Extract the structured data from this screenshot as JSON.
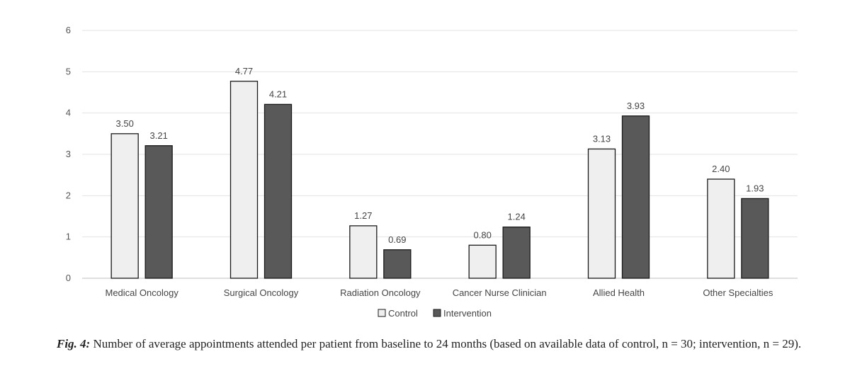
{
  "chart_data": {
    "type": "bar",
    "categories": [
      "Medical Oncology",
      "Surgical Oncology",
      "Radiation Oncology",
      "Cancer Nurse Clinician",
      "Allied Health",
      "Other Specialties"
    ],
    "series": [
      {
        "name": "Control",
        "values": [
          3.5,
          4.77,
          1.27,
          0.8,
          3.13,
          2.4
        ],
        "labels": [
          "3.50",
          "4.77",
          "1.27",
          "0.80",
          "3.13",
          "2.40"
        ],
        "color": "#efefef"
      },
      {
        "name": "Intervention",
        "values": [
          3.21,
          4.21,
          0.69,
          1.24,
          3.93,
          1.93
        ],
        "labels": [
          "3.21",
          "4.21",
          "0.69",
          "1.24",
          "3.93",
          "1.93"
        ],
        "color": "#595959"
      }
    ],
    "ylim": [
      0,
      6
    ],
    "yticks": [
      0,
      1,
      2,
      3,
      4,
      5,
      6
    ],
    "title": "",
    "xlabel": "",
    "ylabel": "",
    "grid": true,
    "legend_position": "bottom-center"
  },
  "caption": {
    "label": "Fig. 4:",
    "text": "Number of average appointments attended per patient from baseline to 24 months (based on available data of control, n = 30; intervention, n = 29)."
  }
}
